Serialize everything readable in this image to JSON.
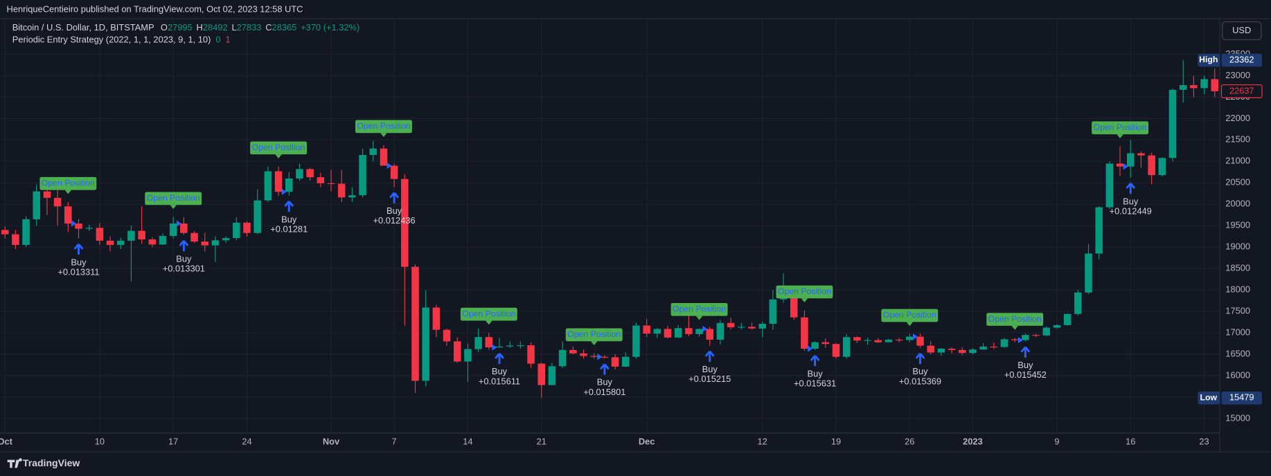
{
  "header": "HenriqueCentieiro published on TradingView.com, Oct 02, 2023 12:58 UTC",
  "footer": "TradingView",
  "currency_button": "USD",
  "legend": {
    "symbol": "Bitcoin / U.S. Dollar, 1D, BITSTAMP",
    "ohlc": [
      {
        "label": "O",
        "value": 27995
      },
      {
        "label": "H",
        "value": 28492
      },
      {
        "label": "L",
        "value": 27833
      },
      {
        "label": "C",
        "value": 28365
      }
    ],
    "change": "+370 (+1.32%)",
    "strategy": "Periodic Entry Strategy (2022, 1, 1, 2023, 9, 1, 10)",
    "strategy_values": [
      "0",
      "1"
    ]
  },
  "chart_data": {
    "type": "candlestick",
    "up_color": "#089981",
    "down_color": "#f23645",
    "grid": true,
    "ylim": [
      14660,
      24332
    ],
    "yticks": [
      15000,
      15500,
      16000,
      16500,
      17000,
      17500,
      18000,
      18500,
      19000,
      19500,
      20000,
      20500,
      21000,
      21500,
      22000,
      22500,
      23000,
      23500
    ],
    "categories": [
      "Oct",
      null,
      null,
      null,
      null,
      null,
      null,
      null,
      null,
      "10",
      null,
      null,
      null,
      null,
      null,
      null,
      "17",
      null,
      null,
      null,
      null,
      null,
      null,
      "24",
      null,
      null,
      null,
      null,
      null,
      null,
      null,
      "Nov",
      null,
      null,
      null,
      null,
      null,
      "7",
      null,
      null,
      null,
      null,
      null,
      null,
      "14",
      null,
      null,
      null,
      null,
      null,
      null,
      "21",
      null,
      null,
      null,
      null,
      null,
      null,
      null,
      null,
      null,
      "Dec",
      null,
      null,
      null,
      null,
      null,
      null,
      null,
      null,
      null,
      null,
      "12",
      null,
      null,
      null,
      null,
      null,
      null,
      "19",
      null,
      null,
      null,
      null,
      null,
      null,
      "26",
      null,
      null,
      null,
      null,
      null,
      "2023",
      null,
      null,
      null,
      null,
      null,
      null,
      null,
      "9",
      null,
      null,
      null,
      null,
      null,
      null,
      "16",
      null,
      null,
      null,
      null,
      null,
      null,
      "23",
      null
    ],
    "open": [
      19400,
      19300,
      19050,
      19650,
      20300,
      20150,
      19950,
      19550,
      19430,
      19450,
      19150,
      19050,
      19150,
      19380,
      19180,
      19060,
      19260,
      19550,
      19330,
      19130,
      19040,
      19160,
      19210,
      19570,
      19330,
      20090,
      20770,
      20290,
      20600,
      20820,
      20630,
      20490,
      20480,
      20160,
      20210,
      21150,
      21300,
      20900,
      20590,
      18540,
      15880,
      17590,
      17070,
      16800,
      16330,
      16620,
      16900,
      16660,
      16680,
      16700,
      16710,
      16280,
      15780,
      16220,
      16600,
      16520,
      16460,
      16440,
      16430,
      16210,
      16440,
      17170,
      16980,
      17090,
      16890,
      17110,
      16970,
      17090,
      16840,
      17230,
      17130,
      17140,
      17100,
      17210,
      17780,
      17810,
      17360,
      16630,
      16780,
      16740,
      16440,
      16900,
      16820,
      16830,
      16780,
      16840,
      16830,
      16910,
      16700,
      16540,
      16630,
      16600,
      16530,
      16610,
      16680,
      16670,
      16850,
      16830,
      16950,
      16940,
      17120,
      17180,
      17440,
      17940,
      18850,
      19930,
      20950,
      20880,
      21190,
      21140,
      20680,
      21080,
      22670,
      22780,
      22710,
      22920
    ],
    "high": [
      19480,
      19400,
      19720,
      20460,
      20420,
      20470,
      20050,
      19650,
      19520,
      19560,
      19250,
      19220,
      19500,
      19950,
      19230,
      19320,
      19700,
      19700,
      19370,
      19330,
      19250,
      19250,
      19700,
      19600,
      20350,
      20880,
      20880,
      20750,
      20950,
      20850,
      20730,
      20800,
      20800,
      20400,
      21300,
      21480,
      21380,
      20950,
      20700,
      18600,
      18000,
      17650,
      17100,
      16900,
      16750,
      17100,
      17000,
      16880,
      16800,
      16800,
      16780,
      16300,
      16300,
      16800,
      16680,
      16610,
      16520,
      16480,
      16500,
      16550,
      17240,
      17320,
      17110,
      17160,
      17180,
      17400,
      17110,
      17140,
      17300,
      17350,
      17230,
      17240,
      17260,
      18000,
      18390,
      17850,
      17520,
      16800,
      16870,
      16760,
      16970,
      16910,
      16890,
      16880,
      16860,
      16880,
      16970,
      16980,
      16800,
      16650,
      16660,
      16660,
      16640,
      16760,
      16780,
      16880,
      16880,
      16980,
      16980,
      17150,
      17200,
      17450,
      18000,
      19070,
      19950,
      21000,
      21350,
      21500,
      21230,
      21200,
      21100,
      22700,
      23362,
      23000,
      23000,
      23170
    ],
    "low": [
      19200,
      18950,
      19000,
      19500,
      19750,
      19500,
      19350,
      19200,
      19380,
      19050,
      18900,
      18950,
      18200,
      19080,
      19000,
      19050,
      19200,
      19280,
      19100,
      18900,
      18650,
      19100,
      19160,
      19250,
      19300,
      20050,
      20200,
      20200,
      20550,
      20550,
      20400,
      20300,
      20050,
      20050,
      20150,
      21000,
      20900,
      20400,
      17170,
      15600,
      15750,
      16900,
      16700,
      16300,
      15850,
      16550,
      16600,
      16650,
      16650,
      16630,
      16180,
      15479,
      15780,
      16180,
      16500,
      16400,
      16400,
      16400,
      16140,
      16200,
      16400,
      16900,
      16880,
      16870,
      16880,
      16920,
      16910,
      16700,
      16730,
      17080,
      17080,
      17080,
      16900,
      17070,
      17700,
      17300,
      16580,
      16600,
      16650,
      16400,
      16400,
      16760,
      16720,
      16760,
      16770,
      16780,
      16780,
      16650,
      16500,
      16470,
      16520,
      16480,
      16500,
      16600,
      16620,
      16650,
      16780,
      16800,
      16900,
      16920,
      17100,
      17160,
      17400,
      17900,
      18720,
      19890,
      20660,
      20620,
      20850,
      20470,
      20650,
      21000,
      22370,
      22500,
      22570,
      22500
    ],
    "close": [
      19300,
      19050,
      19650,
      20300,
      20150,
      19950,
      19550,
      19430,
      19450,
      19150,
      19050,
      19150,
      19380,
      19180,
      19060,
      19260,
      19550,
      19330,
      19130,
      19040,
      19160,
      19210,
      19570,
      19330,
      20090,
      20770,
      20290,
      20600,
      20820,
      20630,
      20490,
      20480,
      20160,
      20210,
      21150,
      21300,
      20900,
      20590,
      18540,
      15880,
      17590,
      17070,
      16800,
      16330,
      16620,
      16900,
      16660,
      16680,
      16700,
      16710,
      16280,
      15780,
      16220,
      16600,
      16520,
      16460,
      16440,
      16430,
      16210,
      16440,
      17170,
      16980,
      17090,
      16890,
      17110,
      16970,
      17090,
      16840,
      17230,
      17130,
      17140,
      17100,
      17210,
      17780,
      17810,
      17360,
      16630,
      16780,
      16740,
      16440,
      16900,
      16820,
      16830,
      16780,
      16840,
      16830,
      16910,
      16700,
      16540,
      16630,
      16600,
      16530,
      16610,
      16680,
      16670,
      16850,
      16830,
      16950,
      16940,
      17120,
      17180,
      17440,
      17940,
      18850,
      19930,
      20950,
      20880,
      21190,
      21140,
      20680,
      21080,
      22670,
      22780,
      22710,
      22920,
      22637
    ],
    "open_label": "Open Position",
    "buy_label": "Buy",
    "signals": [
      null,
      null,
      null,
      null,
      null,
      null,
      null,
      "+0.013311",
      null,
      null,
      null,
      null,
      null,
      null,
      null,
      null,
      null,
      "+0.013301",
      null,
      null,
      null,
      null,
      null,
      null,
      null,
      null,
      null,
      "+0.01281",
      null,
      null,
      null,
      null,
      null,
      null,
      null,
      null,
      null,
      "+0.012436",
      null,
      null,
      null,
      null,
      null,
      null,
      null,
      null,
      null,
      "+0.015611",
      null,
      null,
      null,
      null,
      null,
      null,
      null,
      null,
      null,
      "+0.015801",
      null,
      null,
      null,
      null,
      null,
      null,
      null,
      null,
      null,
      "+0.015215",
      null,
      null,
      null,
      null,
      null,
      null,
      null,
      null,
      null,
      "+0.015631",
      null,
      null,
      null,
      null,
      null,
      null,
      null,
      null,
      null,
      "+0.015369",
      null,
      null,
      null,
      null,
      null,
      null,
      null,
      null,
      null,
      "+0.015452",
      null,
      null,
      null,
      null,
      null,
      null,
      null,
      null,
      null,
      "+0.012449",
      null,
      null,
      null,
      null,
      null,
      null,
      null,
      null
    ],
    "high_marker": {
      "label": "High",
      "value": 23362
    },
    "low_marker": {
      "label": "Low",
      "value": 15479
    },
    "last_price": 22637
  }
}
